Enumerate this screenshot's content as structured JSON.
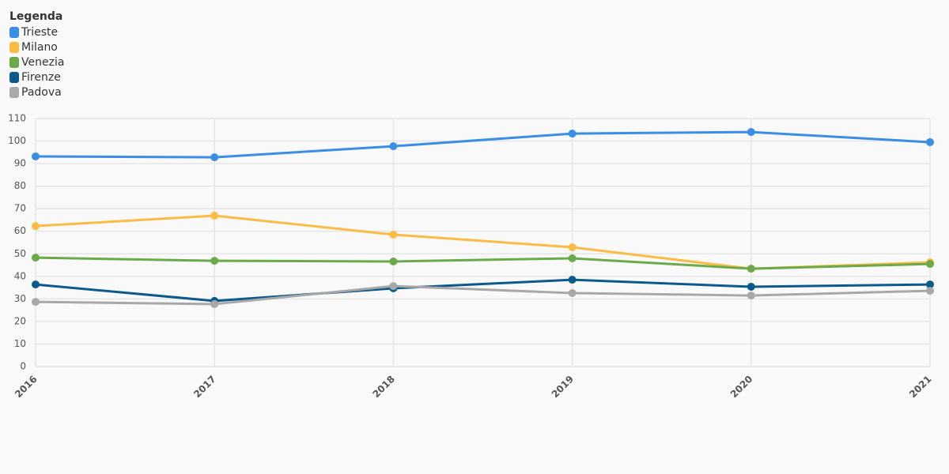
{
  "chart_data": {
    "type": "line",
    "legend_title": "Legenda",
    "legend_position": "top-left",
    "categories": [
      "2016",
      "2017",
      "2018",
      "2019",
      "2020",
      "2021"
    ],
    "series": [
      {
        "name": "Trieste",
        "color": "#3a8ee6",
        "values": [
          93.2,
          92.8,
          97.7,
          103.3,
          104.0,
          99.5
        ]
      },
      {
        "name": "Milano",
        "color": "#fbbc45",
        "values": [
          62.3,
          66.9,
          58.5,
          52.9,
          43.4,
          46.2
        ]
      },
      {
        "name": "Venezia",
        "color": "#6aaa4a",
        "values": [
          48.3,
          46.9,
          46.6,
          48.0,
          43.4,
          45.5
        ]
      },
      {
        "name": "Firenze",
        "color": "#0c5a8c",
        "values": [
          36.4,
          29.1,
          34.7,
          38.5,
          35.4,
          36.4
        ]
      },
      {
        "name": "Padova",
        "color": "#a8a8a8",
        "values": [
          28.7,
          27.7,
          35.7,
          32.6,
          31.5,
          33.6
        ]
      }
    ],
    "ylim": [
      0,
      110
    ],
    "yticks": [
      0,
      10,
      20,
      30,
      40,
      50,
      60,
      70,
      80,
      90,
      100,
      110
    ],
    "grid": true
  }
}
